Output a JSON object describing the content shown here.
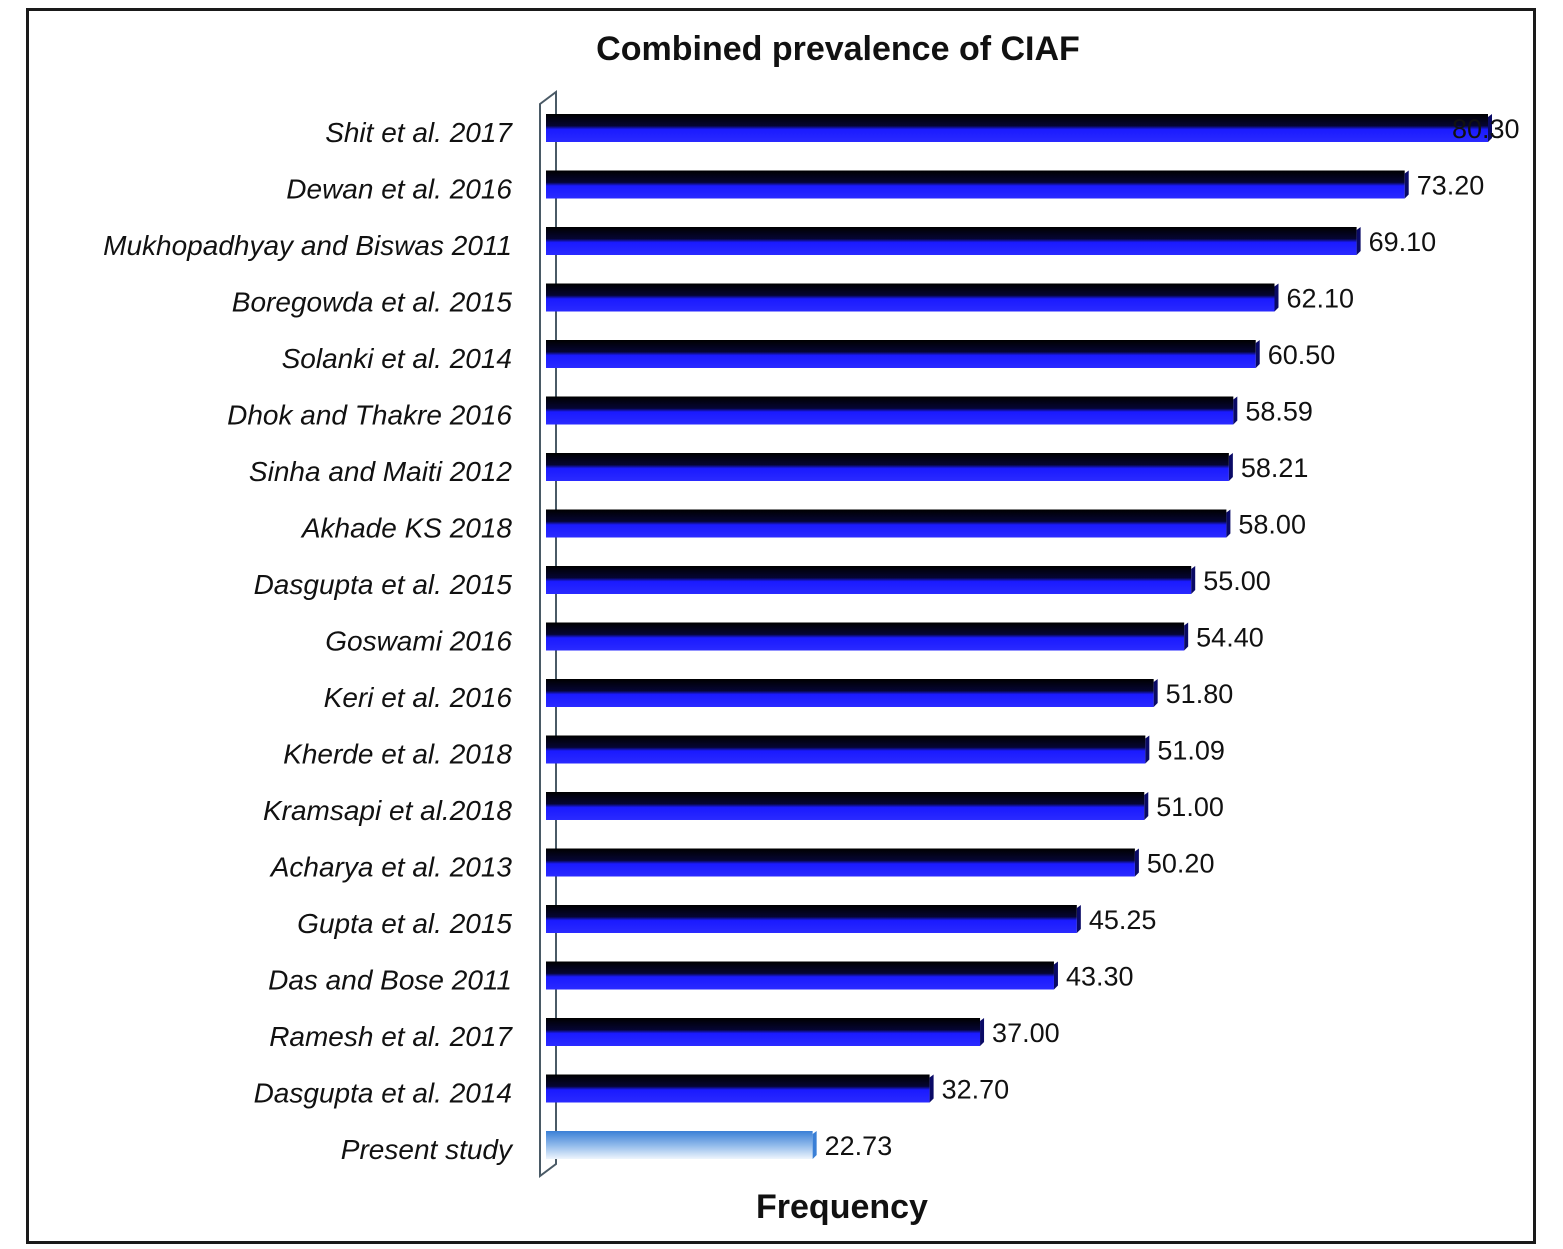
{
  "chart_data": {
    "type": "bar",
    "orientation": "horizontal",
    "title": "Combined prevalence of CIAF",
    "xlabel": "Frequency",
    "ylabel": "",
    "categories": [
      "Shit et al. 2017",
      "Dewan et al. 2016",
      "Mukhopadhyay and Biswas 2011",
      "Boregowda et al. 2015",
      "Solanki et al. 2014",
      "Dhok and Thakre 2016",
      "Sinha and Maiti 2012",
      "Akhade KS 2018",
      "Dasgupta et al. 2015",
      "Goswami 2016",
      "Keri et al. 2016",
      "Kherde et al. 2018",
      "Kramsapi et al.2018",
      "Acharya et al. 2013",
      "Gupta et al. 2015",
      "Das and Bose 2011",
      "Ramesh et al. 2017",
      "Dasgupta et al. 2014",
      "Present study"
    ],
    "values": [
      80.3,
      73.2,
      69.1,
      62.1,
      60.5,
      58.59,
      58.21,
      58.0,
      55.0,
      54.4,
      51.8,
      51.09,
      51.0,
      50.2,
      45.25,
      43.3,
      37.0,
      32.7,
      22.73
    ],
    "value_labels": [
      "80.30",
      "73.20",
      "69.10",
      "62.10",
      "60.50",
      "58.59",
      "58.21",
      "58.00",
      "55.00",
      "54.40",
      "51.80",
      "51.09",
      "51.00",
      "50.20",
      "45.25",
      "43.30",
      "37.00",
      "32.70",
      "22.73"
    ],
    "highlight_category": "Present study",
    "xlim": [
      0,
      80.3
    ],
    "grid": false,
    "legend": "none",
    "colors": {
      "bar_dark": "#000000",
      "bar_main": "#1a1aff",
      "bar_highlight_top": "#3a7fd6",
      "bar_highlight_bottom": "#eaf3fc",
      "axis_wall": "#4a5a66",
      "text": "#111111"
    }
  }
}
